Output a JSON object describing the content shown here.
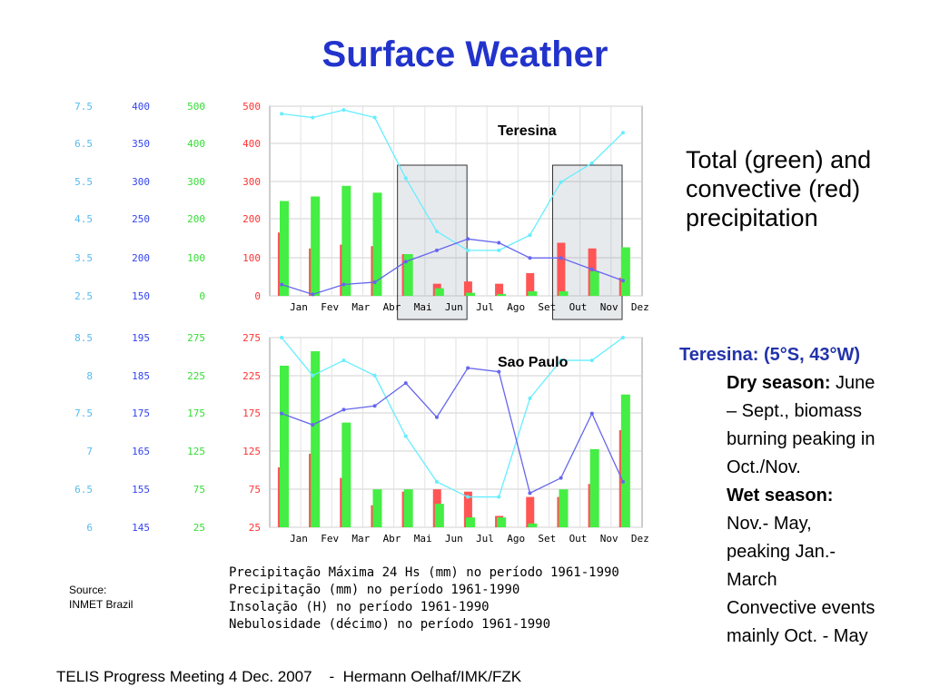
{
  "slide": {
    "title": "Surface Weather",
    "side_note": [
      "Total (green) and",
      "convective (red)",
      "precipitation"
    ],
    "info": {
      "heading": "Teresina: (5°S, 43°W)",
      "dry_label": "Dry season:",
      "dry_text_1": " June",
      "dry_text_2": "– Sept., biomass",
      "dry_text_3": "burning peaking in",
      "dry_text_4": "Oct./Nov.",
      "wet_label": "Wet season:",
      "wet_text_1": "Nov.- May,",
      "wet_text_2": "peaking Jan.-",
      "wet_text_3": "March",
      "conv_1": "Convective events",
      "conv_2": "mainly Oct. - May"
    },
    "source_label": "Source:",
    "source_text": "INMET Brazil",
    "captions": [
      "Precipitação Máxima 24 Hs (mm) no período 1961-1990",
      "Precipitação (mm) no período 1961-1990",
      "Insolação (H) no período 1961-1990",
      "Nebulosidade (décimo) no período 1961-1990"
    ],
    "footer": "TELIS Progress Meeting 4 Dec. 2007    -  Hermann Oelhaf/IMK/FZK"
  },
  "colors": {
    "title": "#2233cc",
    "green_bar": "#44ee44",
    "red_bar": "#ff5555",
    "cyan_line": "#66eeff",
    "blue_line": "#6666ee",
    "axis_cyan": "#55bbee",
    "axis_blue": "#3344ee",
    "axis_green": "#33dd33",
    "axis_red": "#ff3333"
  },
  "chart_data": [
    {
      "type": "bar",
      "title": "Teresina",
      "categories": [
        "Jan",
        "Fev",
        "Mar",
        "Abr",
        "Mai",
        "Jun",
        "Jul",
        "Ago",
        "Set",
        "Out",
        "Nov",
        "Dez"
      ],
      "series": [
        {
          "values": [
            250,
            262,
            290,
            272,
            110,
            20,
            8,
            5,
            12,
            12,
            65,
            128
          ]
        },
        {
          "values": [
            167,
            125,
            135,
            131,
            110,
            32,
            38,
            32,
            60,
            140,
            125,
            48
          ]
        },
        {
          "values": [
            7.3,
            7.2,
            7.4,
            7.2,
            5.6,
            4.2,
            3.7,
            3.7,
            4.1,
            5.5,
            6.0,
            6.8
          ]
        },
        {
          "values": [
            165,
            152,
            165,
            168,
            195,
            210,
            225,
            220,
            200,
            200,
            185,
            170
          ]
        }
      ],
      "axis_scales": {
        "cyan_ticks": [
          "7.5",
          "6.5",
          "5.5",
          "4.5",
          "3.5",
          "2.5"
        ],
        "blue_ticks": [
          "400",
          "350",
          "300",
          "250",
          "200",
          "150"
        ],
        "green_ticks": [
          "500",
          "400",
          "300",
          "200",
          "100",
          "0"
        ],
        "red_ticks": [
          "500",
          "400",
          "300",
          "200",
          "100",
          "0"
        ]
      },
      "highlight_months": [
        [
          "Mai",
          "Jul"
        ],
        [
          "Out",
          "Dez"
        ]
      ]
    },
    {
      "type": "bar",
      "title": "Sao Paulo",
      "categories": [
        "Jan",
        "Fev",
        "Mar",
        "Abr",
        "Mai",
        "Jun",
        "Jul",
        "Ago",
        "Set",
        "Out",
        "Nov",
        "Dez"
      ],
      "series": [
        {
          "values": [
            238,
            257,
            163,
            75,
            75,
            56,
            38,
            38,
            30,
            75,
            128,
            200
          ]
        },
        {
          "values": [
            104,
            122,
            90,
            54,
            72,
            75,
            72,
            40,
            65,
            65,
            82,
            153
          ]
        },
        {
          "values": [
            8.5,
            8.0,
            8.2,
            8.0,
            7.2,
            6.6,
            6.4,
            6.4,
            7.7,
            8.2,
            8.2,
            8.5
          ]
        },
        {
          "values": [
            175,
            172,
            176,
            177,
            183,
            174,
            187,
            186,
            154,
            158,
            175,
            157
          ]
        }
      ],
      "axis_scales": {
        "cyan_ticks": [
          "8.5",
          "8",
          "7.5",
          "7",
          "6.5",
          "6"
        ],
        "blue_ticks": [
          "195",
          "185",
          "175",
          "165",
          "155",
          "145"
        ],
        "green_ticks": [
          "275",
          "225",
          "175",
          "125",
          "75",
          "25"
        ],
        "red_ticks": [
          "275",
          "225",
          "175",
          "125",
          "75",
          "25"
        ]
      }
    }
  ]
}
